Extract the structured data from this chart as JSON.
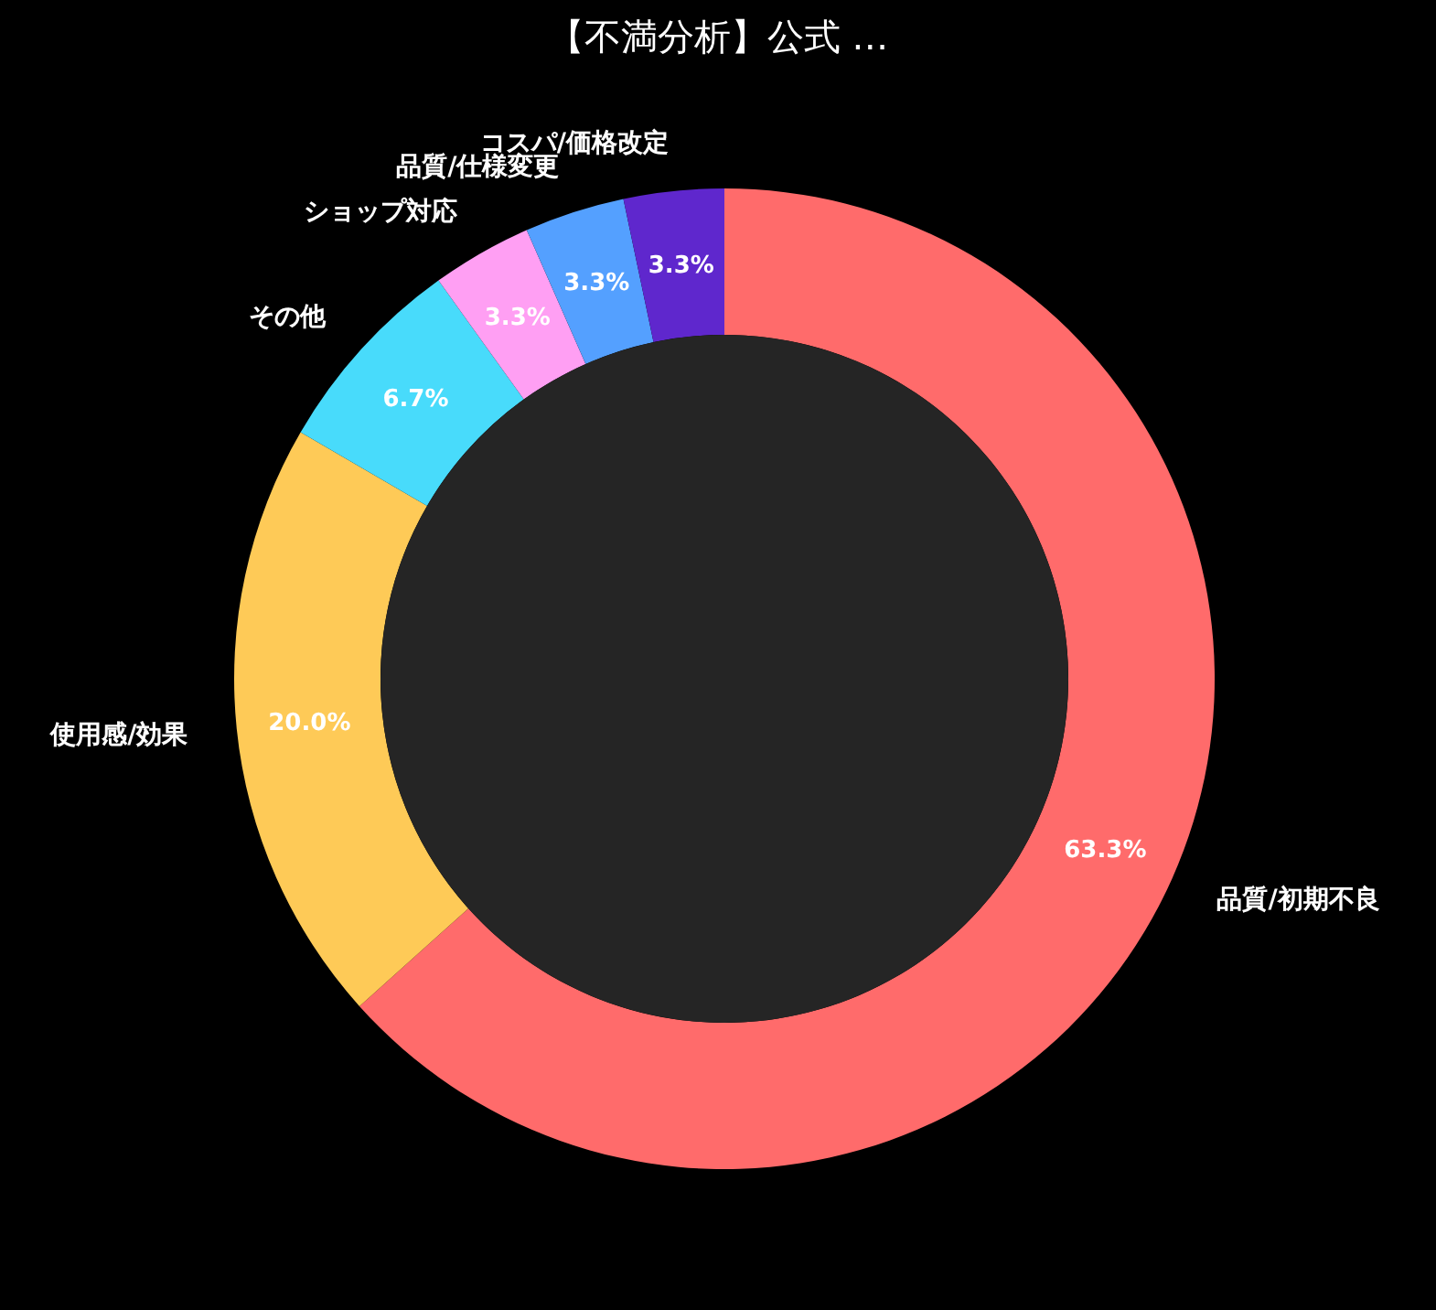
{
  "chart_data": {
    "type": "donut",
    "title": "【不満分析】公式 …",
    "categories": [
      "品質/初期不良",
      "使用感/効果",
      "その他",
      "ショップ対応",
      "品質/仕様変更",
      "コスパ/価格改定"
    ],
    "values": [
      63.3,
      20.0,
      6.7,
      3.3,
      3.3,
      3.3
    ],
    "value_labels": [
      "63.3%",
      "20.0%",
      "6.7%",
      "3.3%",
      "3.3%",
      "3.3%"
    ],
    "colors": [
      "#ff6b6b",
      "#feca57",
      "#48dbfb",
      "#ff9ff3",
      "#54a0ff",
      "#5f27cd"
    ],
    "legend": false
  }
}
